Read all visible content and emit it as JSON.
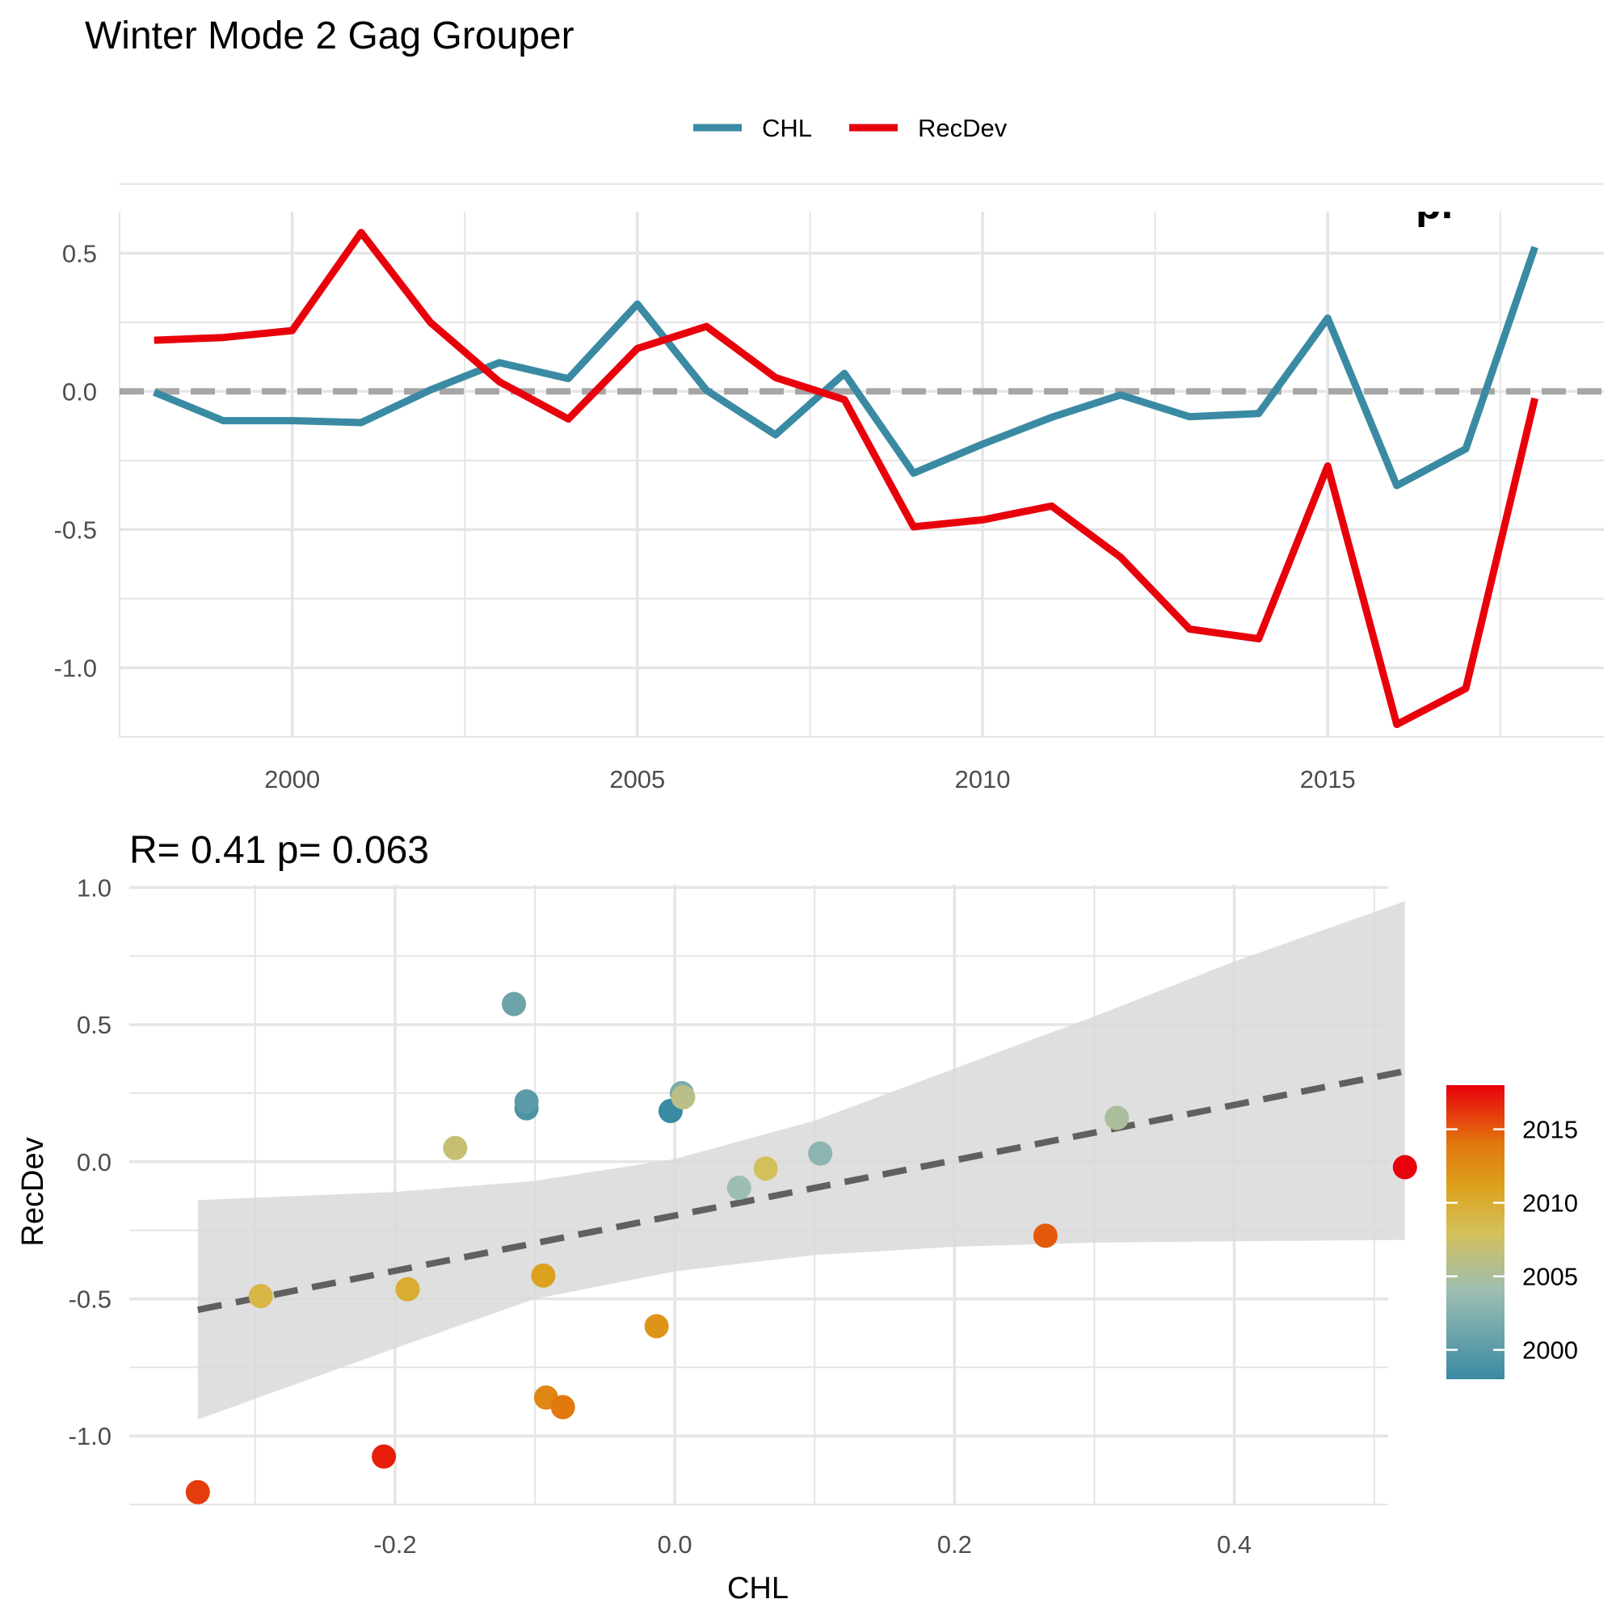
{
  "title": "Winter Mode 2 Gag Grouper",
  "colors": {
    "CHL": "#3a8aa3",
    "RecDev": "#e8000b",
    "zero_line": "#a6a6a6",
    "grid": "#e5e5e5",
    "fit_line": "#606060",
    "ribbon": "#d9d9d9"
  },
  "chart_data": [
    {
      "type": "line",
      "legend": {
        "position": "top",
        "entries": [
          "CHL",
          "RecDev"
        ]
      },
      "corner_label": "p.",
      "x": [
        1998,
        1999,
        2000,
        2001,
        2002,
        2003,
        2004,
        2005,
        2006,
        2007,
        2008,
        2009,
        2010,
        2011,
        2012,
        2013,
        2014,
        2015,
        2016,
        2017,
        2018
      ],
      "xlim": [
        1997.5,
        2019
      ],
      "ylim": [
        -1.25,
        0.65
      ],
      "x_ticks": [
        2000,
        2005,
        2010,
        2015
      ],
      "x_tick_labels": [
        "2000",
        "2005",
        "2010",
        "2015"
      ],
      "y_ticks": [
        -1.0,
        -0.5,
        0.0,
        0.5
      ],
      "y_tick_labels": [
        "-1.0",
        "-0.5",
        "0.0",
        "0.5"
      ],
      "grid": true,
      "reference_line": {
        "y": 0,
        "style": "dashed"
      },
      "series": [
        {
          "name": "CHL",
          "values": [
            -0.003,
            -0.106,
            -0.106,
            -0.113,
            0.005,
            0.104,
            0.046,
            0.316,
            0.004,
            -0.157,
            0.065,
            -0.296,
            -0.191,
            -0.094,
            -0.013,
            -0.092,
            -0.08,
            0.265,
            -0.341,
            -0.208,
            0.522
          ]
        },
        {
          "name": "RecDev",
          "values": [
            0.185,
            0.195,
            0.22,
            0.575,
            0.25,
            0.035,
            -0.1,
            0.155,
            0.235,
            0.05,
            -0.03,
            -0.49,
            -0.465,
            -0.415,
            -0.6,
            -0.86,
            -0.895,
            -0.27,
            -1.205,
            -1.075,
            -0.025
          ]
        }
      ]
    },
    {
      "type": "scatter",
      "stats_label": "R= 0.41  p= 0.063",
      "xlabel": "CHL",
      "ylabel": "RecDev",
      "xlim": [
        -0.39,
        0.51
      ],
      "ylim": [
        -1.25,
        1.01
      ],
      "x_ticks": [
        -0.2,
        0.0,
        0.2,
        0.4
      ],
      "x_tick_labels": [
        "-0.2",
        "0.0",
        "0.2",
        "0.4"
      ],
      "y_ticks": [
        -1.0,
        -0.5,
        0.0,
        0.5,
        1.0
      ],
      "y_tick_labels": [
        "-1.0",
        "-0.5",
        "0.0",
        "0.5",
        "1.0"
      ],
      "grid": true,
      "points": [
        {
          "year": 1998,
          "x": -0.003,
          "y": 0.185
        },
        {
          "year": 1999,
          "x": -0.106,
          "y": 0.195
        },
        {
          "year": 2000,
          "x": -0.106,
          "y": 0.22
        },
        {
          "year": 2001,
          "x": -0.115,
          "y": 0.575
        },
        {
          "year": 2002,
          "x": 0.005,
          "y": 0.25
        },
        {
          "year": 2003,
          "x": 0.104,
          "y": 0.03
        },
        {
          "year": 2004,
          "x": 0.046,
          "y": -0.095
        },
        {
          "year": 2005,
          "x": 0.316,
          "y": 0.16
        },
        {
          "year": 2006,
          "x": 0.006,
          "y": 0.235
        },
        {
          "year": 2007,
          "x": -0.157,
          "y": 0.05
        },
        {
          "year": 2008,
          "x": 0.065,
          "y": -0.025
        },
        {
          "year": 2009,
          "x": -0.296,
          "y": -0.49
        },
        {
          "year": 2010,
          "x": -0.191,
          "y": -0.465
        },
        {
          "year": 2011,
          "x": -0.094,
          "y": -0.415
        },
        {
          "year": 2012,
          "x": -0.013,
          "y": -0.6
        },
        {
          "year": 2013,
          "x": -0.092,
          "y": -0.86
        },
        {
          "year": 2014,
          "x": -0.08,
          "y": -0.895
        },
        {
          "year": 2015,
          "x": 0.265,
          "y": -0.27
        },
        {
          "year": 2016,
          "x": -0.341,
          "y": -1.205
        },
        {
          "year": 2017,
          "x": -0.208,
          "y": -1.075
        },
        {
          "year": 2018,
          "x": 0.522,
          "y": -0.02
        }
      ],
      "fit_line": {
        "x": [
          -0.341,
          0.522
        ],
        "y": [
          -0.54,
          0.33
        ],
        "style": "dashed"
      },
      "confidence_band": {
        "x": [
          -0.341,
          -0.2,
          -0.1,
          0.0,
          0.1,
          0.2,
          0.3,
          0.4,
          0.522
        ],
        "upper": [
          -0.14,
          -0.11,
          -0.07,
          0.01,
          0.15,
          0.34,
          0.53,
          0.73,
          0.95
        ],
        "lower": [
          -0.94,
          -0.68,
          -0.5,
          -0.4,
          -0.34,
          -0.31,
          -0.295,
          -0.29,
          -0.285
        ]
      },
      "colorbar": {
        "variable": "year",
        "range": [
          1998,
          2018
        ],
        "ticks": [
          2000,
          2005,
          2010,
          2015
        ],
        "tick_labels": [
          "2000",
          "2005",
          "2010",
          "2015"
        ],
        "stops": [
          {
            "value": 1998,
            "color": "#3a8aa3"
          },
          {
            "value": 2004,
            "color": "#9dbdb1"
          },
          {
            "value": 2008,
            "color": "#d4c05a"
          },
          {
            "value": 2011,
            "color": "#dca21e"
          },
          {
            "value": 2014,
            "color": "#e2780e"
          },
          {
            "value": 2018,
            "color": "#e8000b"
          }
        ]
      }
    }
  ]
}
